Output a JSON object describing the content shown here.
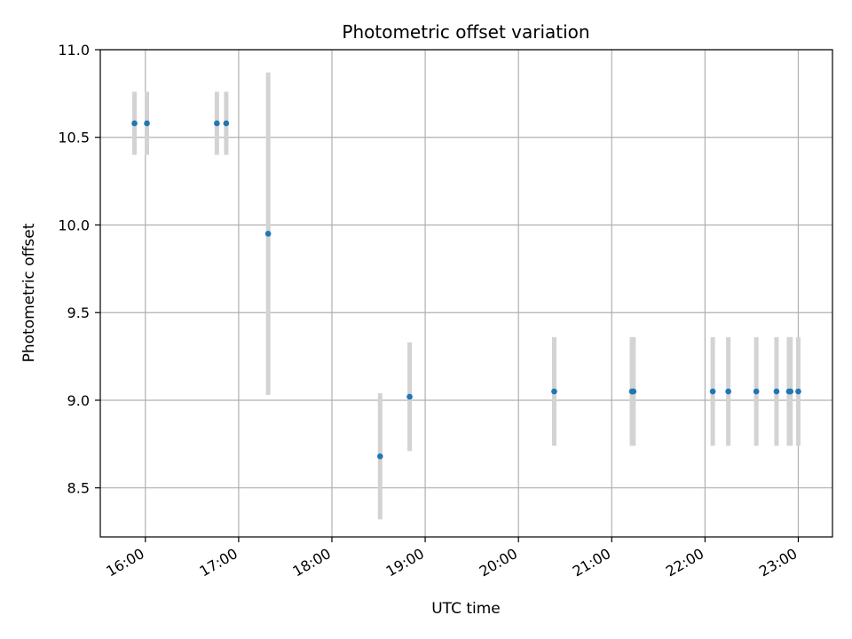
{
  "chart_data": {
    "type": "scatter",
    "title": "Photometric offset variation",
    "xlabel": "UTC time",
    "ylabel": "Photometric offset",
    "x_ticks": [
      "16:00",
      "17:00",
      "18:00",
      "19:00",
      "20:00",
      "21:00",
      "22:00",
      "23:00"
    ],
    "x_tick_hours": [
      16,
      17,
      18,
      19,
      20,
      21,
      22,
      23
    ],
    "y_ticks": [
      "8.5",
      "9.0",
      "9.5",
      "10.0",
      "10.5",
      "11.0"
    ],
    "y_tick_values": [
      8.5,
      9.0,
      9.5,
      10.0,
      10.5,
      11.0
    ],
    "xlim": [
      "15:31",
      "23:22"
    ],
    "ylim": [
      8.22,
      11.0
    ],
    "grid": true,
    "colors": {
      "marker": "#1f77b4",
      "errorbar": "#d3d3d3",
      "grid": "#b0b0b0"
    },
    "series": [
      {
        "points": [
          {
            "x": "15:53",
            "y": 10.58,
            "err": 0.18
          },
          {
            "x": "16:01",
            "y": 10.58,
            "err": 0.18
          },
          {
            "x": "16:46",
            "y": 10.58,
            "err": 0.18
          },
          {
            "x": "16:52",
            "y": 10.58,
            "err": 0.18
          },
          {
            "x": "17:19",
            "y": 9.95,
            "err": 0.92
          },
          {
            "x": "18:31",
            "y": 8.68,
            "err": 0.36
          },
          {
            "x": "18:50",
            "y": 9.02,
            "err": 0.31
          },
          {
            "x": "20:23",
            "y": 9.05,
            "err": 0.31
          },
          {
            "x": "21:13",
            "y": 9.05,
            "err": 0.31
          },
          {
            "x": "21:14",
            "y": 9.05,
            "err": 0.31
          },
          {
            "x": "22:05",
            "y": 9.05,
            "err": 0.31
          },
          {
            "x": "22:15",
            "y": 9.05,
            "err": 0.31
          },
          {
            "x": "22:33",
            "y": 9.05,
            "err": 0.31
          },
          {
            "x": "22:46",
            "y": 9.05,
            "err": 0.31
          },
          {
            "x": "22:54",
            "y": 9.05,
            "err": 0.31
          },
          {
            "x": "22:55",
            "y": 9.05,
            "err": 0.31
          },
          {
            "x": "23:00",
            "y": 9.05,
            "err": 0.31
          }
        ]
      }
    ]
  }
}
